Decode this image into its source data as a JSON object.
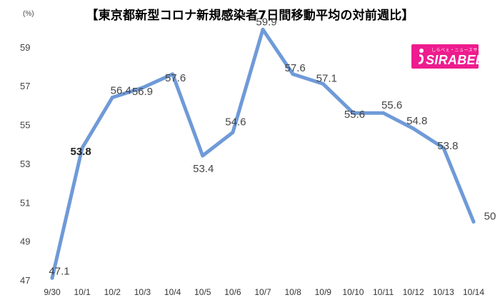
{
  "chart_data": {
    "type": "line",
    "title": "【東京都新型コロナ新規感染者7日間移動平均の対前週比】",
    "ylabel_unit": "(%)",
    "categories": [
      "9/30",
      "10/1",
      "10/2",
      "10/3",
      "10/4",
      "10/5",
      "10/6",
      "10/7",
      "10/8",
      "10/9",
      "10/10",
      "10/11",
      "10/12",
      "10/13",
      "10/14"
    ],
    "series": [
      {
        "values": [
          47.1,
          53.8,
          56.4,
          56.9,
          57.6,
          53.4,
          54.6,
          59.9,
          57.6,
          57.1,
          55.6,
          55.6,
          54.8,
          53.8,
          50
        ]
      }
    ],
    "data_labels": [
      "47.1",
      "53.8",
      "56.4",
      "56.9",
      "57.6",
      "53.4",
      "54.6",
      "59.9",
      "57.6",
      "57.1",
      "55.6",
      "55.6",
      "54.8",
      "53.8",
      "50"
    ],
    "y_ticks": [
      47,
      49,
      51,
      53,
      55,
      57,
      59
    ],
    "ylim": [
      47,
      60.5
    ],
    "grid": false,
    "legend": "none",
    "line_color": "#6f9ad8"
  },
  "logo": {
    "text": "SIRABEE",
    "tagline": "しらべぇ・ニュースサイト",
    "color": "#ee1c8e"
  }
}
